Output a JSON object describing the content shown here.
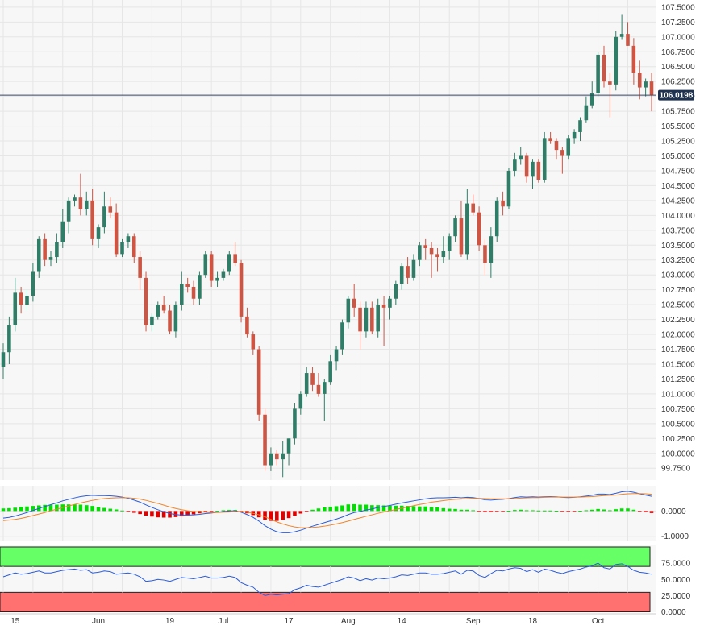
{
  "chart_data": [
    {
      "type": "candlestick",
      "title": "",
      "x_tick_labels": [
        "15",
        "Jun",
        "19",
        "Jul",
        "17",
        "Aug",
        "14",
        "Sep",
        "18",
        "Oct"
      ],
      "y_tick_labels": [
        "107.5000",
        "107.2500",
        "107.0000",
        "106.7500",
        "106.5000",
        "106.2500",
        "106.0000",
        "105.7500",
        "105.5000",
        "105.2500",
        "105.0000",
        "104.7500",
        "104.5000",
        "104.2500",
        "104.0000",
        "103.7500",
        "103.5000",
        "103.2500",
        "103.0000",
        "102.7500",
        "102.5000",
        "102.2500",
        "102.0000",
        "101.7500",
        "101.5000",
        "101.2500",
        "101.0000",
        "100.7500",
        "100.5000",
        "100.2500",
        "100.0000",
        "99.7500"
      ],
      "ylim": [
        99.55,
        107.62
      ],
      "current_price_label": "106.0198",
      "current_price": 106.0198,
      "colors": {
        "up": "#2f7d66",
        "down": "#cc5544",
        "price_line": "#334466"
      },
      "ohlc": [
        [
          101.45,
          101.85,
          101.25,
          101.7
        ],
        [
          101.7,
          102.3,
          101.5,
          102.15
        ],
        [
          102.15,
          102.95,
          102.05,
          102.7
        ],
        [
          102.7,
          102.8,
          102.35,
          102.5
        ],
        [
          102.5,
          102.75,
          102.4,
          102.65
        ],
        [
          102.65,
          103.2,
          102.55,
          103.05
        ],
        [
          103.05,
          103.65,
          102.95,
          103.6
        ],
        [
          103.6,
          103.7,
          103.15,
          103.25
        ],
        [
          103.25,
          103.4,
          103.15,
          103.3
        ],
        [
          103.3,
          103.7,
          103.2,
          103.55
        ],
        [
          103.55,
          104.1,
          103.45,
          103.9
        ],
        [
          103.9,
          104.3,
          103.7,
          104.25
        ],
        [
          104.25,
          104.35,
          104.15,
          104.3
        ],
        [
          104.3,
          104.7,
          104.0,
          104.1
        ],
        [
          104.1,
          104.4,
          104.0,
          104.25
        ],
        [
          104.25,
          104.45,
          103.5,
          103.6
        ],
        [
          103.6,
          103.85,
          103.45,
          103.8
        ],
        [
          103.8,
          104.4,
          103.7,
          104.15
        ],
        [
          104.15,
          104.3,
          103.95,
          104.05
        ],
        [
          104.05,
          104.2,
          103.3,
          103.35
        ],
        [
          103.35,
          103.6,
          103.3,
          103.55
        ],
        [
          103.55,
          103.7,
          103.45,
          103.65
        ],
        [
          103.65,
          103.7,
          103.2,
          103.3
        ],
        [
          103.3,
          103.4,
          102.75,
          102.95
        ],
        [
          102.95,
          103.05,
          102.05,
          102.15
        ],
        [
          102.15,
          102.35,
          102.05,
          102.3
        ],
        [
          102.3,
          102.55,
          102.25,
          102.5
        ],
        [
          102.5,
          102.65,
          102.35,
          102.4
        ],
        [
          102.4,
          102.5,
          102.0,
          102.05
        ],
        [
          102.05,
          102.55,
          101.95,
          102.5
        ],
        [
          102.5,
          103.05,
          102.4,
          102.85
        ],
        [
          102.85,
          102.95,
          102.7,
          102.8
        ],
        [
          102.8,
          102.9,
          102.5,
          102.6
        ],
        [
          102.6,
          103.05,
          102.5,
          103.0
        ],
        [
          103.0,
          103.4,
          102.95,
          103.35
        ],
        [
          103.35,
          103.4,
          102.8,
          102.9
        ],
        [
          102.9,
          103.05,
          102.8,
          102.95
        ],
        [
          102.95,
          103.1,
          102.9,
          103.05
        ],
        [
          103.05,
          103.4,
          103.0,
          103.35
        ],
        [
          103.35,
          103.55,
          103.15,
          103.2
        ],
        [
          103.2,
          103.25,
          102.2,
          102.3
        ],
        [
          102.3,
          102.45,
          101.95,
          102.0
        ],
        [
          102.0,
          102.05,
          101.65,
          101.75
        ],
        [
          101.75,
          101.8,
          100.55,
          100.65
        ],
        [
          100.65,
          100.75,
          99.7,
          99.8
        ],
        [
          99.8,
          100.1,
          99.7,
          100.0
        ],
        [
          100.0,
          100.05,
          99.8,
          99.9
        ],
        [
          99.9,
          100.2,
          99.6,
          100.0
        ],
        [
          100.0,
          100.25,
          99.8,
          100.25
        ],
        [
          100.25,
          100.85,
          100.15,
          100.75
        ],
        [
          100.75,
          101.05,
          100.65,
          101.0
        ],
        [
          101.0,
          101.45,
          100.95,
          101.35
        ],
        [
          101.35,
          101.45,
          101.05,
          101.15
        ],
        [
          101.15,
          101.35,
          100.95,
          101.0
        ],
        [
          101.0,
          101.25,
          100.55,
          101.2
        ],
        [
          101.2,
          101.65,
          101.15,
          101.55
        ],
        [
          101.55,
          101.8,
          101.4,
          101.75
        ],
        [
          101.75,
          102.25,
          101.65,
          102.2
        ],
        [
          102.2,
          102.65,
          102.1,
          102.6
        ],
        [
          102.6,
          102.85,
          102.3,
          102.45
        ],
        [
          102.45,
          102.55,
          101.75,
          102.05
        ],
        [
          102.05,
          102.55,
          101.95,
          102.45
        ],
        [
          102.45,
          102.55,
          102.0,
          102.05
        ],
        [
          102.05,
          102.6,
          101.95,
          102.5
        ],
        [
          102.5,
          102.65,
          101.8,
          102.45
        ],
        [
          102.45,
          102.65,
          102.25,
          102.6
        ],
        [
          102.6,
          102.9,
          102.5,
          102.85
        ],
        [
          102.85,
          103.2,
          102.75,
          103.15
        ],
        [
          103.15,
          103.3,
          102.85,
          102.95
        ],
        [
          102.95,
          103.35,
          102.9,
          103.25
        ],
        [
          103.25,
          103.55,
          103.15,
          103.5
        ],
        [
          103.5,
          103.6,
          103.25,
          103.45
        ],
        [
          103.45,
          103.55,
          102.95,
          103.35
        ],
        [
          103.35,
          103.45,
          103.05,
          103.3
        ],
        [
          103.3,
          103.65,
          103.2,
          103.4
        ],
        [
          103.4,
          103.7,
          103.25,
          103.65
        ],
        [
          103.65,
          104.0,
          103.55,
          103.95
        ],
        [
          103.95,
          104.25,
          103.3,
          103.35
        ],
        [
          103.35,
          104.45,
          103.25,
          104.2
        ],
        [
          104.2,
          104.35,
          104.0,
          104.05
        ],
        [
          104.05,
          104.15,
          103.4,
          103.5
        ],
        [
          103.5,
          103.6,
          103.0,
          103.2
        ],
        [
          103.2,
          103.8,
          102.95,
          103.65
        ],
        [
          103.65,
          104.3,
          103.55,
          104.25
        ],
        [
          104.25,
          104.4,
          104.0,
          104.15
        ],
        [
          104.15,
          104.8,
          104.1,
          104.75
        ],
        [
          104.75,
          105.05,
          104.65,
          104.95
        ],
        [
          104.95,
          105.15,
          104.85,
          105.0
        ],
        [
          105.0,
          105.05,
          104.55,
          104.65
        ],
        [
          104.65,
          104.95,
          104.45,
          104.9
        ],
        [
          104.9,
          104.95,
          104.55,
          104.6
        ],
        [
          104.6,
          105.4,
          104.55,
          105.3
        ],
        [
          105.3,
          105.4,
          105.2,
          105.25
        ],
        [
          105.25,
          105.3,
          104.95,
          105.1
        ],
        [
          105.1,
          105.15,
          104.7,
          105.0
        ],
        [
          105.0,
          105.35,
          104.95,
          105.3
        ],
        [
          105.3,
          105.45,
          105.2,
          105.4
        ],
        [
          105.4,
          105.65,
          105.25,
          105.6
        ],
        [
          105.6,
          106.0,
          105.55,
          105.85
        ],
        [
          105.85,
          106.25,
          105.8,
          106.05
        ],
        [
          106.05,
          106.75,
          106.0,
          106.7
        ],
        [
          106.7,
          106.85,
          106.15,
          106.25
        ],
        [
          106.25,
          106.4,
          105.65,
          106.2
        ],
        [
          106.2,
          107.1,
          106.1,
          107.0
        ],
        [
          107.0,
          107.37,
          106.95,
          107.05
        ],
        [
          107.05,
          107.25,
          106.85,
          106.85
        ],
        [
          106.85,
          106.98,
          106.2,
          106.4
        ],
        [
          106.4,
          106.6,
          105.95,
          106.15
        ],
        [
          106.15,
          106.3,
          106.0,
          106.25
        ],
        [
          106.25,
          106.4,
          105.75,
          106.0198
        ]
      ]
    },
    {
      "type": "macd",
      "y_tick_labels": [
        "0.0000",
        "-1.0000"
      ],
      "ylim": [
        -1.2,
        1.0
      ],
      "series": [
        {
          "color": "#2a5cdb",
          "role": "macd"
        },
        {
          "color": "#f0842b",
          "role": "signal"
        }
      ],
      "histogram_colors": {
        "positive": "#00e000",
        "negative": "#e00000"
      },
      "macd": [
        -0.28,
        -0.25,
        -0.2,
        -0.13,
        -0.06,
        0.02,
        0.1,
        0.18,
        0.25,
        0.32,
        0.4,
        0.46,
        0.52,
        0.57,
        0.6,
        0.62,
        0.61,
        0.61,
        0.6,
        0.58,
        0.55,
        0.5,
        0.43,
        0.35,
        0.24,
        0.14,
        0.05,
        -0.03,
        -0.1,
        -0.14,
        -0.16,
        -0.16,
        -0.15,
        -0.13,
        -0.1,
        -0.08,
        -0.05,
        -0.02,
        0.0,
        0.01,
        -0.05,
        -0.14,
        -0.25,
        -0.4,
        -0.58,
        -0.72,
        -0.82,
        -0.86,
        -0.86,
        -0.82,
        -0.76,
        -0.68,
        -0.6,
        -0.53,
        -0.46,
        -0.39,
        -0.32,
        -0.24,
        -0.14,
        -0.06,
        -0.02,
        0.04,
        0.08,
        0.14,
        0.18,
        0.22,
        0.27,
        0.32,
        0.36,
        0.4,
        0.44,
        0.48,
        0.51,
        0.52,
        0.52,
        0.53,
        0.54,
        0.52,
        0.54,
        0.53,
        0.49,
        0.44,
        0.43,
        0.45,
        0.46,
        0.49,
        0.53,
        0.56,
        0.55,
        0.56,
        0.55,
        0.56,
        0.57,
        0.56,
        0.54,
        0.53,
        0.54,
        0.56,
        0.59,
        0.62,
        0.67,
        0.67,
        0.65,
        0.7,
        0.76,
        0.78,
        0.74,
        0.68,
        0.63,
        0.58
      ],
      "signal": [
        -0.38,
        -0.36,
        -0.33,
        -0.29,
        -0.24,
        -0.18,
        -0.12,
        -0.06,
        0.01,
        0.07,
        0.14,
        0.2,
        0.26,
        0.32,
        0.37,
        0.42,
        0.46,
        0.49,
        0.51,
        0.52,
        0.53,
        0.52,
        0.5,
        0.47,
        0.42,
        0.36,
        0.3,
        0.23,
        0.16,
        0.1,
        0.05,
        0.01,
        -0.02,
        -0.04,
        -0.05,
        -0.06,
        -0.06,
        -0.05,
        -0.04,
        -0.03,
        -0.03,
        -0.05,
        -0.09,
        -0.15,
        -0.23,
        -0.33,
        -0.43,
        -0.51,
        -0.58,
        -0.63,
        -0.66,
        -0.66,
        -0.65,
        -0.63,
        -0.6,
        -0.56,
        -0.51,
        -0.46,
        -0.4,
        -0.33,
        -0.27,
        -0.21,
        -0.15,
        -0.09,
        -0.04,
        0.01,
        0.06,
        0.11,
        0.16,
        0.21,
        0.26,
        0.3,
        0.35,
        0.38,
        0.41,
        0.44,
        0.46,
        0.47,
        0.49,
        0.5,
        0.5,
        0.49,
        0.48,
        0.48,
        0.48,
        0.48,
        0.49,
        0.51,
        0.52,
        0.53,
        0.53,
        0.54,
        0.55,
        0.55,
        0.55,
        0.55,
        0.55,
        0.55,
        0.56,
        0.57,
        0.59,
        0.61,
        0.62,
        0.63,
        0.66,
        0.68,
        0.69,
        0.69,
        0.68,
        0.66
      ]
    },
    {
      "type": "rsi",
      "y_tick_labels": [
        "75.0000",
        "50.0000",
        "25.0000",
        "0.0000"
      ],
      "ylim": [
        0,
        100
      ],
      "overbought": 70,
      "oversold": 30,
      "colors": {
        "line": "#2a5cdb",
        "overbought_band": "#66ff66",
        "oversold_band": "#ff7070"
      },
      "values": [
        54,
        57,
        60,
        58,
        59,
        61,
        63,
        60,
        60,
        62,
        64,
        65,
        66,
        64,
        65,
        60,
        61,
        63,
        62,
        58,
        59,
        60,
        58,
        54,
        47,
        48,
        50,
        49,
        47,
        50,
        53,
        52,
        51,
        53,
        55,
        52,
        52,
        53,
        55,
        53,
        45,
        41,
        38,
        30,
        25,
        27,
        26,
        27,
        28,
        34,
        37,
        41,
        39,
        38,
        41,
        44,
        47,
        50,
        54,
        52,
        48,
        51,
        49,
        52,
        51,
        52,
        54,
        57,
        56,
        58,
        60,
        60,
        58,
        58,
        59,
        61,
        63,
        58,
        64,
        63,
        56,
        53,
        59,
        64,
        63,
        66,
        68,
        67,
        62,
        65,
        61,
        66,
        64,
        61,
        59,
        62,
        64,
        66,
        69,
        71,
        75,
        68,
        66,
        73,
        74,
        70,
        64,
        61,
        60,
        58
      ]
    }
  ]
}
